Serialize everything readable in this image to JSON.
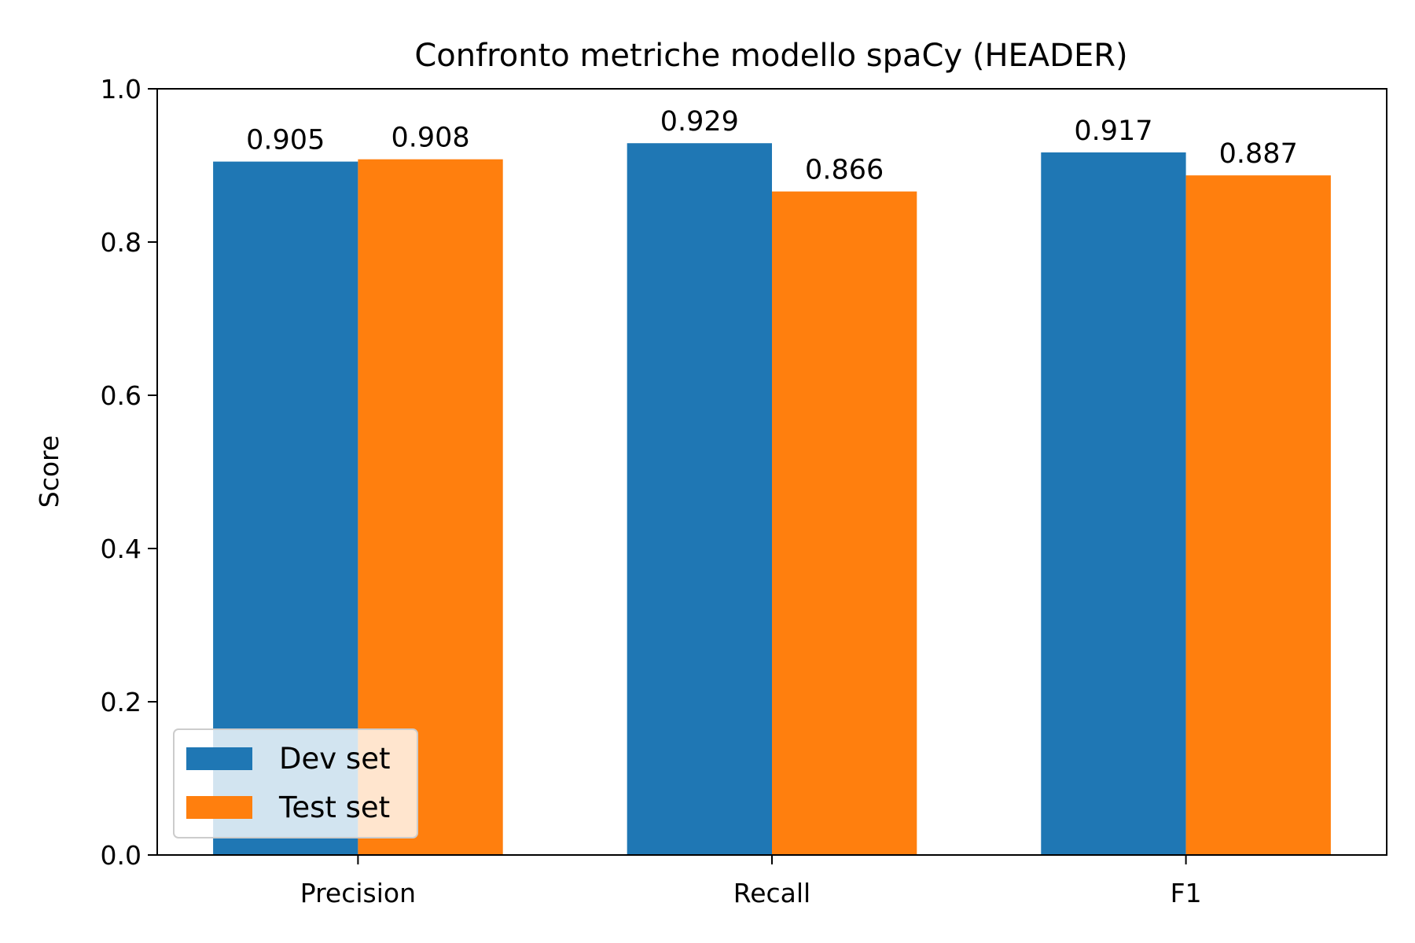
{
  "chart_data": {
    "type": "bar",
    "title": "Confronto metriche modello spaCy (HEADER)",
    "xlabel": "",
    "ylabel": "Score",
    "ylim": [
      0,
      1.0
    ],
    "yticks": [
      "0.0",
      "0.2",
      "0.4",
      "0.6",
      "0.8",
      "1.0"
    ],
    "categories": [
      "Precision",
      "Recall",
      "F1"
    ],
    "series": [
      {
        "name": "Dev set",
        "color": "#1f77b4",
        "values": [
          0.905,
          0.929,
          0.917
        ],
        "labels": [
          "0.905",
          "0.929",
          "0.917"
        ]
      },
      {
        "name": "Test set",
        "color": "#ff7f0e",
        "values": [
          0.908,
          0.866,
          0.887
        ],
        "labels": [
          "0.908",
          "0.866",
          "0.887"
        ]
      }
    ],
    "grid": false,
    "legend_position": "lower-left"
  }
}
